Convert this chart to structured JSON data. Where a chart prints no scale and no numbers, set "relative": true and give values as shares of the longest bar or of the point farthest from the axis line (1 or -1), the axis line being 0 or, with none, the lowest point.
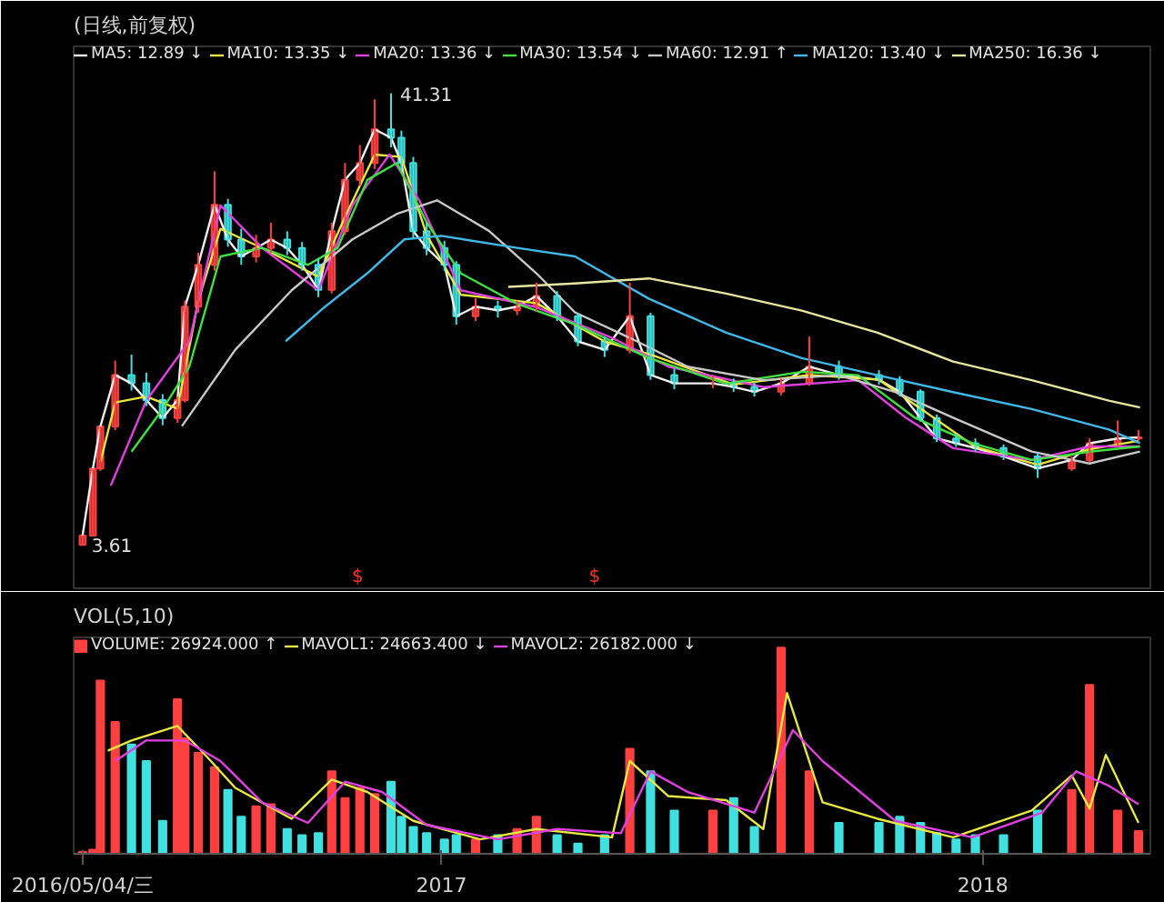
{
  "chart_data": [
    {
      "type": "candlestick",
      "subtitle": "(日线,前复权)",
      "legend": "top",
      "tick_labels": false,
      "xlim": [
        "2016-04-28",
        "2018-04-24"
      ],
      "x": [
        "2016-05-04",
        "2016-05-11",
        "2016-05-16",
        "2016-05-26",
        "2016-06-06",
        "2016-06-16",
        "2016-06-27",
        "2016-07-07",
        "2016-07-12",
        "2016-07-21",
        "2016-08-01",
        "2016-08-10",
        "2016-08-19",
        "2016-08-29",
        "2016-09-08",
        "2016-09-19",
        "2016-09-29",
        "2016-10-10",
        "2016-10-19",
        "2016-10-28",
        "2016-11-07",
        "2016-11-17",
        "2016-11-28",
        "2016-12-05",
        "2016-12-13",
        "2016-12-22",
        "2017-01-03",
        "2017-01-11",
        "2017-01-24",
        "2017-02-08",
        "2017-02-21",
        "2017-03-06",
        "2017-03-20",
        "2017-04-03",
        "2017-04-21",
        "2017-05-08",
        "2017-05-22",
        "2017-06-07",
        "2017-07-03",
        "2017-07-17",
        "2017-07-31",
        "2017-08-18",
        "2017-09-06",
        "2017-09-26",
        "2017-10-23",
        "2017-11-06",
        "2017-11-20",
        "2017-12-01",
        "2017-12-14",
        "2017-12-27",
        "2018-01-15",
        "2018-02-07",
        "2018-03-02",
        "2018-03-14",
        "2018-04-02",
        "2018-04-16"
      ],
      "ohlc": [
        [
          3.61,
          4.4,
          3.61,
          4.4
        ],
        [
          4.4,
          10.0,
          4.4,
          10.0
        ],
        [
          10.0,
          13.5,
          9.8,
          13.5
        ],
        [
          13.5,
          19.0,
          13.2,
          17.8
        ],
        [
          17.8,
          19.5,
          16.5,
          17.1
        ],
        [
          17.1,
          18.0,
          15.2,
          15.7
        ],
        [
          15.7,
          16.2,
          13.6,
          14.2
        ],
        [
          14.2,
          16.0,
          13.8,
          15.7
        ],
        [
          15.7,
          24.0,
          15.5,
          23.5
        ],
        [
          23.5,
          28.0,
          23.0,
          27.0
        ],
        [
          27.0,
          34.8,
          26.5,
          32.0
        ],
        [
          32.0,
          32.5,
          28.5,
          29.1
        ],
        [
          29.1,
          30.0,
          27.0,
          27.7
        ],
        [
          27.7,
          29.5,
          27.2,
          28.4
        ],
        [
          28.4,
          30.5,
          28.0,
          29.1
        ],
        [
          29.1,
          29.8,
          27.8,
          28.4
        ],
        [
          28.4,
          28.9,
          26.5,
          27.0
        ],
        [
          27.0,
          27.5,
          24.3,
          24.9
        ],
        [
          24.9,
          30.5,
          24.6,
          29.8
        ],
        [
          29.8,
          35.5,
          29.5,
          34.1
        ],
        [
          34.1,
          37.0,
          33.6,
          35.5
        ],
        [
          35.5,
          40.8,
          35.0,
          38.3
        ],
        [
          38.3,
          41.31,
          36.8,
          37.6
        ],
        [
          37.6,
          38.2,
          35.0,
          35.5
        ],
        [
          35.5,
          36.0,
          29.2,
          29.8
        ],
        [
          29.8,
          30.5,
          27.8,
          28.4
        ],
        [
          28.4,
          29.0,
          26.5,
          27.0
        ],
        [
          27.0,
          27.3,
          22.0,
          22.7
        ],
        [
          22.7,
          24.2,
          22.3,
          23.5
        ],
        [
          23.5,
          24.0,
          22.6,
          23.2
        ],
        [
          23.2,
          24.0,
          22.8,
          23.5
        ],
        [
          23.5,
          25.5,
          23.1,
          24.4
        ],
        [
          24.4,
          24.8,
          22.3,
          22.7
        ],
        [
          22.7,
          23.0,
          20.2,
          20.6
        ],
        [
          20.6,
          21.0,
          19.3,
          19.9
        ],
        [
          19.9,
          25.5,
          19.6,
          22.7
        ],
        [
          22.7,
          23.0,
          17.4,
          17.8
        ],
        [
          17.8,
          18.3,
          16.6,
          17.1
        ],
        [
          17.1,
          17.8,
          16.7,
          17.1
        ],
        [
          17.1,
          17.5,
          16.4,
          16.8
        ],
        [
          16.8,
          17.2,
          16.0,
          16.4
        ],
        [
          16.4,
          17.5,
          16.1,
          17.1
        ],
        [
          17.1,
          21.0,
          16.9,
          18.5
        ],
        [
          18.5,
          19.0,
          17.4,
          17.8
        ],
        [
          17.8,
          18.2,
          17.0,
          17.4
        ],
        [
          17.4,
          17.7,
          16.0,
          16.4
        ],
        [
          16.4,
          16.6,
          13.9,
          14.2
        ],
        [
          14.2,
          14.5,
          12.2,
          12.5
        ],
        [
          12.5,
          12.9,
          11.8,
          12.1
        ],
        [
          12.1,
          12.5,
          11.4,
          11.7
        ],
        [
          11.7,
          12.0,
          10.7,
          11.0
        ],
        [
          11.0,
          11.3,
          9.2,
          10.0
        ],
        [
          10.0,
          11.0,
          9.8,
          10.7
        ],
        [
          10.7,
          12.5,
          10.5,
          12.1
        ],
        [
          12.1,
          14.0,
          11.8,
          12.5
        ],
        [
          12.5,
          13.2,
          12.3,
          12.6
        ]
      ],
      "colors": [
        "#ff4040",
        "#ff4040",
        "#ff4040",
        "#ff4040",
        "#40e0e0",
        "#40e0e0",
        "#40e0e0",
        "#ff4040",
        "#ff4040",
        "#ff4040",
        "#ff4040",
        "#40e0e0",
        "#40e0e0",
        "#ff4040",
        "#ff4040",
        "#40e0e0",
        "#40e0e0",
        "#40e0e0",
        "#ff4040",
        "#ff4040",
        "#ff4040",
        "#ff4040",
        "#40e0e0",
        "#40e0e0",
        "#40e0e0",
        "#40e0e0",
        "#40e0e0",
        "#40e0e0",
        "#ff4040",
        "#40e0e0",
        "#ff4040",
        "#ff4040",
        "#40e0e0",
        "#40e0e0",
        "#40e0e0",
        "#ff4040",
        "#40e0e0",
        "#40e0e0",
        "#ff4040",
        "#40e0e0",
        "#40e0e0",
        "#ff4040",
        "#ff4040",
        "#40e0e0",
        "#40e0e0",
        "#40e0e0",
        "#40e0e0",
        "#40e0e0",
        "#40e0e0",
        "#40e0e0",
        "#40e0e0",
        "#40e0e0",
        "#ff4040",
        "#ff4040",
        "#ff4040",
        "#ff4040"
      ],
      "series": [
        {
          "name": "MA5: 12.89 ↓",
          "type": "line",
          "color": "#f0f0f0",
          "values": [
            4.4,
            10.0,
            13.5,
            17.8,
            17.1,
            15.7,
            14.2,
            15.7,
            23.5,
            27.0,
            32.0,
            29.1,
            27.7,
            28.4,
            29.1,
            28.4,
            27.0,
            24.9,
            29.8,
            34.1,
            35.5,
            38.3,
            37.6,
            35.5,
            29.8,
            28.4,
            27.0,
            22.7,
            23.5,
            23.2,
            23.5,
            24.4,
            22.7,
            20.6,
            19.9,
            22.7,
            17.8,
            17.1,
            17.1,
            16.8,
            16.4,
            17.1,
            18.5,
            17.8,
            17.4,
            16.4,
            14.2,
            12.5,
            12.1,
            11.7,
            11.0,
            10.0,
            10.7,
            12.1,
            12.5,
            12.6
          ]
        },
        {
          "name": "MA10: 13.35 ↓",
          "type": "line",
          "color": "#e8e840",
          "x": [
            "2016-05-16",
            "2016-05-26",
            "2016-06-16",
            "2016-07-07",
            "2016-07-21",
            "2016-08-05",
            "2016-09-02",
            "2016-10-10",
            "2016-10-28",
            "2016-11-17",
            "2016-12-05",
            "2016-12-22",
            "2017-01-14",
            "2017-03-06",
            "2017-04-21",
            "2017-05-22",
            "2017-07-17",
            "2017-09-06",
            "2017-10-23",
            "2017-11-20",
            "2017-12-27",
            "2018-02-07",
            "2018-03-14",
            "2018-04-16"
          ],
          "values": [
            10.5,
            15.5,
            16.0,
            15.0,
            24.0,
            30.0,
            28.4,
            26.0,
            31.0,
            36.2,
            36.0,
            29.5,
            24.5,
            23.8,
            20.6,
            19.5,
            17.0,
            17.8,
            17.4,
            15.0,
            11.8,
            10.3,
            11.6,
            12.3
          ]
        },
        {
          "name": "MA20: 13.36 ↓",
          "type": "line",
          "color": "#e040e0",
          "x": [
            "2016-05-23",
            "2016-06-16",
            "2016-07-15",
            "2016-08-05",
            "2016-09-02",
            "2016-10-10",
            "2016-11-02",
            "2016-11-27",
            "2016-12-17",
            "2017-01-14",
            "2017-03-06",
            "2017-04-26",
            "2017-06-03",
            "2017-08-06",
            "2017-10-09",
            "2017-11-10",
            "2017-12-12",
            "2018-02-03",
            "2018-03-14",
            "2018-04-17"
          ],
          "values": [
            8.57,
            15.66,
            20.62,
            31.96,
            28.41,
            24.87,
            31.96,
            36.21,
            32.38,
            24.87,
            23.45,
            20.9,
            18.49,
            16.79,
            17.36,
            14.24,
            11.69,
            10.7,
            11.83,
            11.83
          ]
        },
        {
          "name": "MA30: 13.54 ↓",
          "type": "line",
          "color": "#40e040",
          "x": [
            "2016-06-06",
            "2016-06-27",
            "2016-07-15",
            "2016-08-05",
            "2016-09-02",
            "2016-10-03",
            "2016-10-23",
            "2016-11-12",
            "2016-12-02",
            "2016-12-22",
            "2017-01-14",
            "2017-02-21",
            "2017-04-01",
            "2017-05-21",
            "2017-07-12",
            "2017-09-01",
            "2017-10-09",
            "2017-11-16",
            "2017-12-25",
            "2018-02-03",
            "2018-03-14",
            "2018-04-17"
          ],
          "values": [
            11.4,
            14.95,
            18.49,
            27.7,
            28.41,
            26.99,
            28.41,
            34.08,
            35.5,
            30.54,
            26.29,
            23.74,
            22.03,
            19.2,
            17.07,
            18.07,
            17.78,
            14.24,
            12.11,
            10.7,
            11.4,
            11.83
          ]
        },
        {
          "name": "MA60: 12.91 ↑",
          "type": "line",
          "color": "#c8c8c8",
          "x": [
            "2016-07-10",
            "2016-08-15",
            "2016-09-22",
            "2016-11-02",
            "2016-12-02",
            "2016-12-29",
            "2017-02-02",
            "2017-03-06",
            "2017-04-01",
            "2017-05-08",
            "2017-06-16",
            "2017-08-06",
            "2017-09-26",
            "2017-11-03",
            "2017-12-12",
            "2018-02-03",
            "2018-03-14",
            "2018-04-17"
          ],
          "values": [
            13.53,
            19.91,
            24.87,
            29.12,
            31.25,
            32.38,
            29.83,
            26.29,
            23.03,
            20.9,
            18.49,
            17.36,
            17.78,
            16.37,
            14.24,
            11.4,
            10.41,
            11.4
          ]
        },
        {
          "name": "MA120: 13.40 ↓",
          "type": "line",
          "color": "#40b8e8",
          "x": [
            "2016-09-18",
            "2016-10-14",
            "2016-11-12",
            "2016-12-07",
            "2017-01-01",
            "2017-02-21",
            "2017-04-01",
            "2017-05-21",
            "2017-07-12",
            "2017-09-01",
            "2017-10-22",
            "2017-12-12",
            "2018-02-03",
            "2018-03-27",
            "2018-04-17"
          ],
          "values": [
            20.62,
            23.45,
            26.29,
            29.12,
            29.41,
            28.41,
            27.7,
            24.16,
            21.33,
            19.2,
            17.78,
            16.37,
            14.95,
            13.25,
            12.11
          ]
        },
        {
          "name": "MA250: 16.36 ↓",
          "type": "line",
          "color": "#e6e6a0",
          "x": [
            "2017-02-15",
            "2017-04-01",
            "2017-05-21",
            "2017-07-12",
            "2017-09-01",
            "2017-10-22",
            "2017-12-12",
            "2018-02-03",
            "2018-03-27",
            "2018-04-17"
          ],
          "values": [
            25.15,
            25.44,
            25.86,
            24.59,
            23.17,
            21.33,
            18.92,
            17.36,
            15.66,
            15.09
          ]
        }
      ],
      "annotations": [
        "41.31",
        "3.61",
        "$",
        "$"
      ]
    },
    {
      "type": "bar",
      "title": "VOL(5,10)",
      "legend": "top",
      "relative": true,
      "tick_labels": "x",
      "xlim": [
        "2016-04-28",
        "2018-04-24"
      ],
      "xticks": [
        {
          "value": "2016-05-04",
          "label": "2016/05/04/三"
        },
        {
          "value": "2017-01-01",
          "label": "2017"
        },
        {
          "value": "2018-01-01",
          "label": "2018"
        }
      ],
      "x": [
        "2016-05-04",
        "2016-05-11",
        "2016-05-16",
        "2016-05-26",
        "2016-06-06",
        "2016-06-16",
        "2016-06-27",
        "2016-07-07",
        "2016-07-12",
        "2016-07-21",
        "2016-08-01",
        "2016-08-10",
        "2016-08-19",
        "2016-08-29",
        "2016-09-08",
        "2016-09-19",
        "2016-09-29",
        "2016-10-10",
        "2016-10-19",
        "2016-10-28",
        "2016-11-07",
        "2016-11-17",
        "2016-11-28",
        "2016-12-05",
        "2016-12-13",
        "2016-12-22",
        "2017-01-03",
        "2017-01-11",
        "2017-01-24",
        "2017-02-08",
        "2017-02-21",
        "2017-03-06",
        "2017-03-20",
        "2017-04-03",
        "2017-04-21",
        "2017-05-08",
        "2017-05-22",
        "2017-06-07",
        "2017-07-03",
        "2017-07-17",
        "2017-07-31",
        "2017-08-18",
        "2017-09-06",
        "2017-09-26",
        "2017-10-23",
        "2017-11-06",
        "2017-11-20",
        "2017-12-01",
        "2017-12-14",
        "2017-12-27",
        "2018-01-15",
        "2018-02-07",
        "2018-03-02",
        "2018-03-14",
        "2018-04-02",
        "2018-04-16"
      ],
      "series": [
        {
          "name": "VOLUME: 26924.000 ↑",
          "type": "bar",
          "colors": [
            "#ff4040",
            "#ff4040",
            "#ff4040",
            "#ff4040",
            "#40e0e0",
            "#40e0e0",
            "#40e0e0",
            "#ff4040",
            "#ff4040",
            "#ff4040",
            "#ff4040",
            "#40e0e0",
            "#40e0e0",
            "#ff4040",
            "#ff4040",
            "#40e0e0",
            "#40e0e0",
            "#40e0e0",
            "#ff4040",
            "#ff4040",
            "#ff4040",
            "#ff4040",
            "#40e0e0",
            "#40e0e0",
            "#40e0e0",
            "#40e0e0",
            "#40e0e0",
            "#40e0e0",
            "#ff4040",
            "#40e0e0",
            "#ff4040",
            "#ff4040",
            "#40e0e0",
            "#40e0e0",
            "#40e0e0",
            "#ff4040",
            "#40e0e0",
            "#40e0e0",
            "#ff4040",
            "#40e0e0",
            "#40e0e0",
            "#ff4040",
            "#ff4040",
            "#40e0e0",
            "#40e0e0",
            "#40e0e0",
            "#40e0e0",
            "#40e0e0",
            "#40e0e0",
            "#40e0e0",
            "#40e0e0",
            "#40e0e0",
            "#ff4040",
            "#ff4040",
            "#ff4040",
            "#ff4040"
          ],
          "values": [
            0.01,
            0.02,
            0.84,
            0.64,
            0.53,
            0.45,
            0.16,
            0.75,
            0.56,
            0.49,
            0.42,
            0.31,
            0.18,
            0.23,
            0.24,
            0.12,
            0.09,
            0.1,
            0.4,
            0.27,
            0.32,
            0.29,
            0.35,
            0.18,
            0.13,
            0.1,
            0.07,
            0.09,
            0.07,
            0.09,
            0.12,
            0.18,
            0.09,
            0.05,
            0.09,
            0.51,
            0.4,
            0.21,
            0.21,
            0.27,
            0.13,
            1.0,
            0.4,
            0.15,
            0.15,
            0.18,
            0.15,
            0.1,
            0.07,
            0.09,
            0.09,
            0.21,
            0.31,
            0.82,
            0.21,
            0.11
          ]
        },
        {
          "name": "MAVOL1: 24663.400 ↓",
          "type": "line",
          "color": "#e8e840",
          "x": [
            "2016-05-21",
            "2016-06-06",
            "2016-07-07",
            "2016-07-27",
            "2016-08-15",
            "2016-09-22",
            "2016-10-19",
            "2016-11-12",
            "2016-12-13",
            "2017-01-27",
            "2017-03-06",
            "2017-04-26",
            "2017-05-08",
            "2017-06-03",
            "2017-07-12",
            "2017-08-06",
            "2017-08-22",
            "2017-09-15",
            "2017-10-22",
            "2017-12-12",
            "2018-02-03",
            "2018-03-02",
            "2018-03-14",
            "2018-03-25",
            "2018-04-16"
          ],
          "values": [
            0.5,
            0.55,
            0.62,
            0.47,
            0.32,
            0.17,
            0.36,
            0.3,
            0.16,
            0.07,
            0.12,
            0.08,
            0.45,
            0.28,
            0.26,
            0.12,
            0.78,
            0.25,
            0.17,
            0.08,
            0.21,
            0.38,
            0.22,
            0.48,
            0.15
          ]
        },
        {
          "name": "MAVOL2: 26182.000 ↓",
          "type": "line",
          "color": "#e040e0",
          "x": [
            "2016-05-26",
            "2016-06-16",
            "2016-07-12",
            "2016-08-05",
            "2016-09-02",
            "2016-10-03",
            "2016-10-28",
            "2016-11-22",
            "2016-12-22",
            "2017-02-08",
            "2017-03-20",
            "2017-05-02",
            "2017-05-22",
            "2017-06-16",
            "2017-07-31",
            "2017-08-26",
            "2017-09-15",
            "2017-11-03",
            "2017-12-25",
            "2018-02-10",
            "2018-03-05",
            "2018-03-27",
            "2018-04-16"
          ],
          "values": [
            0.45,
            0.55,
            0.55,
            0.45,
            0.25,
            0.15,
            0.35,
            0.3,
            0.14,
            0.07,
            0.12,
            0.1,
            0.4,
            0.3,
            0.2,
            0.6,
            0.45,
            0.16,
            0.08,
            0.2,
            0.4,
            0.33,
            0.24
          ]
        }
      ]
    }
  ]
}
